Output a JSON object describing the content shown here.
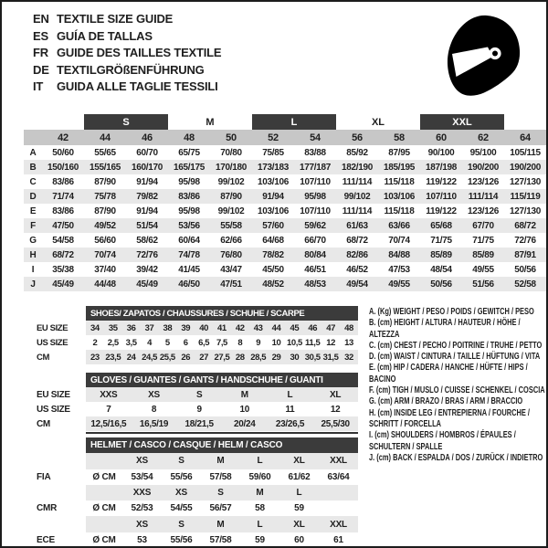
{
  "colors": {
    "dark_bar": "#3b3b3b",
    "size_row": "#c7c7c7",
    "stripe": "#e8e8e8",
    "text": "#1f1f1f"
  },
  "languages": [
    {
      "code": "EN",
      "title": "TEXTILE SIZE GUIDE"
    },
    {
      "code": "ES",
      "title": "GUÍA DE TALLAS"
    },
    {
      "code": "FR",
      "title": "GUIDE DES TAILLES TEXTILE"
    },
    {
      "code": "DE",
      "title": "TEXTILGRÖßENFÜHRUNG"
    },
    {
      "code": "IT",
      "title": "GUIDA ALLE TAGLIE TESSILI"
    }
  ],
  "main_table": {
    "size_groups": [
      {
        "label": "",
        "span": 1,
        "dark": false
      },
      {
        "label": "S",
        "span": 2,
        "dark": true
      },
      {
        "label": "M",
        "span": 2,
        "dark": false
      },
      {
        "label": "L",
        "span": 2,
        "dark": true
      },
      {
        "label": "XL",
        "span": 2,
        "dark": false
      },
      {
        "label": "XXL",
        "span": 2,
        "dark": true
      },
      {
        "label": "",
        "span": 1,
        "dark": false
      }
    ],
    "sizes": [
      "42",
      "44",
      "46",
      "48",
      "50",
      "52",
      "54",
      "56",
      "58",
      "60",
      "62",
      "64"
    ],
    "rows": [
      {
        "letter": "A",
        "values": [
          "50/60",
          "55/65",
          "60/70",
          "65/75",
          "70/80",
          "75/85",
          "83/88",
          "85/92",
          "87/95",
          "90/100",
          "95/100",
          "105/115"
        ]
      },
      {
        "letter": "B",
        "values": [
          "150/160",
          "155/165",
          "160/170",
          "165/175",
          "170/180",
          "173/183",
          "177/187",
          "182/190",
          "185/195",
          "187/198",
          "190/200",
          "190/200"
        ]
      },
      {
        "letter": "C",
        "values": [
          "83/86",
          "87/90",
          "91/94",
          "95/98",
          "99/102",
          "103/106",
          "107/110",
          "111/114",
          "115/118",
          "119/122",
          "123/126",
          "127/130"
        ]
      },
      {
        "letter": "D",
        "values": [
          "71/74",
          "75/78",
          "79/82",
          "83/86",
          "87/90",
          "91/94",
          "95/98",
          "99/102",
          "103/106",
          "107/110",
          "111/114",
          "115/119"
        ]
      },
      {
        "letter": "E",
        "values": [
          "83/86",
          "87/90",
          "91/94",
          "95/98",
          "99/102",
          "103/106",
          "107/110",
          "111/114",
          "115/118",
          "119/122",
          "123/126",
          "127/130"
        ]
      },
      {
        "letter": "F",
        "values": [
          "47/50",
          "49/52",
          "51/54",
          "53/56",
          "55/58",
          "57/60",
          "59/62",
          "61/63",
          "63/66",
          "65/68",
          "67/70",
          "68/72"
        ]
      },
      {
        "letter": "G",
        "values": [
          "54/58",
          "56/60",
          "58/62",
          "60/64",
          "62/66",
          "64/68",
          "66/70",
          "68/72",
          "70/74",
          "71/75",
          "71/75",
          "72/76"
        ]
      },
      {
        "letter": "H",
        "values": [
          "68/72",
          "70/74",
          "72/76",
          "74/78",
          "76/80",
          "78/82",
          "80/84",
          "82/86",
          "84/88",
          "85/89",
          "85/89",
          "87/91"
        ]
      },
      {
        "letter": "I",
        "values": [
          "35/38",
          "37/40",
          "39/42",
          "41/45",
          "43/47",
          "45/50",
          "46/51",
          "46/52",
          "47/53",
          "48/54",
          "49/55",
          "50/56"
        ]
      },
      {
        "letter": "J",
        "values": [
          "45/49",
          "44/48",
          "45/49",
          "46/50",
          "47/51",
          "48/52",
          "48/53",
          "49/54",
          "49/55",
          "50/56",
          "51/56",
          "52/58"
        ]
      }
    ]
  },
  "shoes_table": {
    "title": "SHOES/ ZAPATOS / CHAUSSURES / SCHUHE / SCARPE",
    "rows": [
      {
        "label": "EU SIZE",
        "shaded": true,
        "values": [
          "34",
          "35",
          "36",
          "37",
          "38",
          "39",
          "40",
          "41",
          "42",
          "43",
          "44",
          "45",
          "46",
          "47",
          "48"
        ]
      },
      {
        "label": "US SIZE",
        "shaded": false,
        "values": [
          "2",
          "2,5",
          "3,5",
          "4",
          "5",
          "6",
          "6,5",
          "7,5",
          "8",
          "9",
          "10",
          "10,5",
          "11,5",
          "12",
          "13"
        ]
      },
      {
        "label": "CM",
        "shaded": true,
        "values": [
          "23",
          "23,5",
          "24",
          "24,5",
          "25,5",
          "26",
          "27",
          "27,5",
          "28",
          "28,5",
          "29",
          "30",
          "30,5",
          "31,5",
          "32"
        ]
      }
    ]
  },
  "gloves_table": {
    "title": "GLOVES / GUANTES / GANTS / HANDSCHUHE / GUANTI",
    "rows": [
      {
        "label": "EU SIZE",
        "shaded": true,
        "values": [
          "XXS",
          "XS",
          "S",
          "M",
          "L",
          "XL"
        ]
      },
      {
        "label": "US SIZE",
        "shaded": false,
        "values": [
          "7",
          "8",
          "9",
          "10",
          "11",
          "12"
        ]
      },
      {
        "label": "CM",
        "shaded": true,
        "values": [
          "12,5/16,5",
          "16,5/19",
          "18/21,5",
          "20/24",
          "23/26,5",
          "25,5/30"
        ]
      }
    ]
  },
  "helmet_table": {
    "title": "HELMET / CASCO / CASQUE / HELM / CASCO",
    "sections": [
      {
        "label": "FIA",
        "unit": "Ø CM",
        "sizes": [
          "XS",
          "S",
          "M",
          "L",
          "XL",
          "XXL"
        ],
        "values": [
          "53/54",
          "55/56",
          "57/58",
          "59/60",
          "61/62",
          "63/64"
        ]
      },
      {
        "label": "CMR",
        "unit": "Ø CM",
        "sizes": [
          "XXS",
          "XS",
          "S",
          "M",
          "L",
          ""
        ],
        "values": [
          "52/53",
          "54/55",
          "56/57",
          "58",
          "59",
          ""
        ]
      },
      {
        "label": "ECE",
        "unit": "Ø CM",
        "sizes": [
          "XS",
          "S",
          "M",
          "L",
          "XL",
          "XXL"
        ],
        "values": [
          "53",
          "55/56",
          "57/58",
          "59",
          "60",
          "61"
        ]
      }
    ]
  },
  "legend": [
    "A. (Kg) WEIGHT / PESO / POIDS / GEWITCH / PESO",
    "B. (cm) HEIGHT / ALTURA / HAUTEUR / HÖHE / ALTEZZA",
    "C. (cm) CHEST / PECHO / POITRINE / TRUHE / PETTO",
    "D. (cm) WAIST / CINTURA / TAILLE / HÜFTUNG / VITA",
    "E. (cm) HIP / CADERA / HANCHE / HÜFTE / HIPS / BACINO",
    "F. (cm) TIGH / MUSLO / CUISSE / SCHENKEL / COSCIA",
    "G. (cm) ARM / BRAZO / BRAS / ARM / BRACCIO",
    "H. (cm) INSIDE LEG / ENTREPIERNA / FOURCHE / SCHRITT / FORCELLA",
    "I. (cm) SHOULDERS / HOMBROS / ÉPAULES / SCHULTERN / SPALLE",
    "J. (cm) BACK / ESPALDA / DOS / ZURÜCK / INDIETRO"
  ],
  "icons": {
    "helmet": "full-face racing helmet silhouette"
  }
}
